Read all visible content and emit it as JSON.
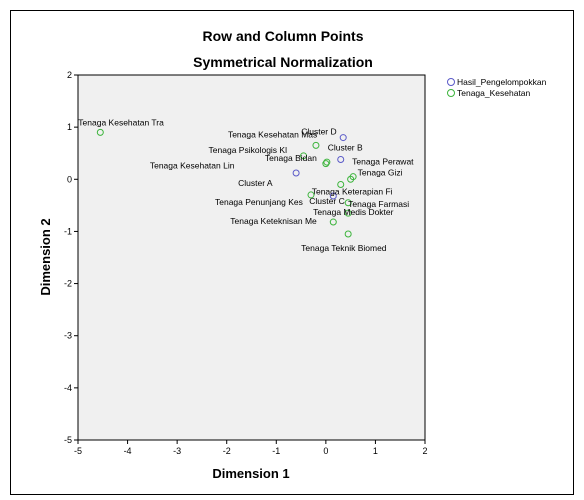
{
  "chart_data": {
    "type": "scatter",
    "title": "Row and Column Points",
    "subtitle": "Symmetrical Normalization",
    "xlabel": "Dimension 1",
    "ylabel": "Dimension 2",
    "xlim": [
      -5,
      2
    ],
    "ylim": [
      -5,
      2
    ],
    "x_ticks": [
      -5,
      -4,
      -3,
      -2,
      -1,
      0,
      1,
      2
    ],
    "y_ticks": [
      2,
      1,
      0,
      -1,
      -2,
      -3,
      -4,
      -5
    ],
    "grid": false,
    "legend_position": "top-right",
    "series": [
      {
        "name": "Hasil_Pengelompokkan",
        "color": "#5a5ac8",
        "points": [
          {
            "label": "Cluster D",
            "x": 0.35,
            "y": 0.8
          },
          {
            "label": "Cluster B",
            "x": 0.3,
            "y": 0.38
          },
          {
            "label": "Cluster A",
            "x": -0.6,
            "y": 0.12
          },
          {
            "label": "Cluster C",
            "x": 0.15,
            "y": -0.32
          }
        ]
      },
      {
        "name": "Tenaga_Kesehatan",
        "color": "#3cb43c",
        "points": [
          {
            "label": "Tenaga Kesehatan Tra",
            "x": -4.55,
            "y": 0.9
          },
          {
            "label": "Tenaga Kesehatan Mas",
            "x": -0.2,
            "y": 0.65
          },
          {
            "label": "Tenaga Psikologis Kl",
            "x": -0.45,
            "y": 0.45
          },
          {
            "label": "Tenaga Bidan",
            "x": 0.02,
            "y": 0.33
          },
          {
            "label": "Tenaga Kesehatan Lin",
            "x": 0.0,
            "y": 0.3
          },
          {
            "label": "Tenaga Perawat",
            "x": 0.55,
            "y": 0.05
          },
          {
            "label": "Tenaga Gizi",
            "x": 0.5,
            "y": 0.0
          },
          {
            "label": "Tenaga Keterapian Fi",
            "x": 0.3,
            "y": -0.1
          },
          {
            "label": "Tenaga Penunjang Kes",
            "x": -0.3,
            "y": -0.3
          },
          {
            "label": "Tenaga Farmasi",
            "x": 0.45,
            "y": -0.45
          },
          {
            "label": "Tenaga Medis Dokter",
            "x": 0.45,
            "y": -0.65
          },
          {
            "label": "Tenaga Keteknisan Me",
            "x": 0.15,
            "y": -0.82
          },
          {
            "label": "Tenaga Teknik Biomed",
            "x": 0.45,
            "y": -1.05
          }
        ]
      }
    ]
  }
}
